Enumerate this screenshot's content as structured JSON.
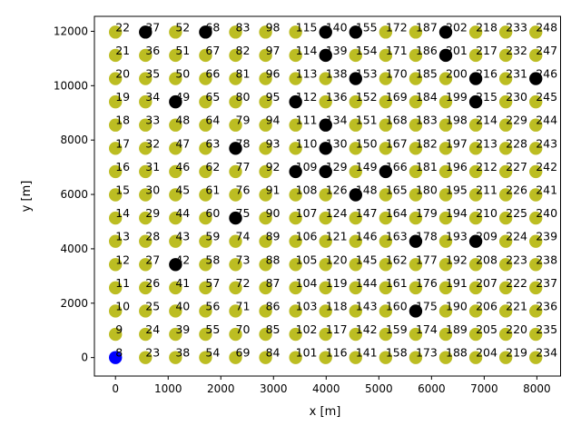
{
  "chart_data": {
    "type": "scatter",
    "xlabel": "x [m]",
    "ylabel": "y [m]",
    "xlim": [
      -400,
      8450
    ],
    "ylim": [
      -680,
      12550
    ],
    "xticks": [
      0,
      1000,
      2000,
      3000,
      4000,
      5000,
      6000,
      7000,
      8000
    ],
    "yticks": [
      0,
      2000,
      4000,
      6000,
      8000,
      10000,
      12000
    ],
    "grid": false,
    "colors": {
      "default": "#bcbd22",
      "highlighted": "#000000",
      "origin": "#0000ff"
    },
    "columns_x": [
      0,
      570,
      1140,
      1710,
      2280,
      2850,
      3420,
      3990,
      4560,
      5130,
      5700,
      6270,
      6840,
      7410,
      7980
    ],
    "rows_y": [
      0,
      855,
      1710,
      2565,
      3420,
      4275,
      5130,
      5985,
      6840,
      7695,
      8550,
      9405,
      10260,
      11115,
      11970
    ],
    "column_first_label": [
      8,
      23,
      38,
      54,
      69,
      84,
      101,
      116,
      141,
      158,
      173,
      188,
      204,
      219,
      234
    ],
    "column_label_overrides": {
      "0": [
        8,
        9,
        10,
        11,
        12,
        13,
        14,
        15,
        16,
        17,
        18,
        19,
        20,
        21,
        22
      ],
      "7": [
        116,
        117,
        118,
        119,
        120,
        121,
        124,
        126,
        129,
        130,
        134,
        136,
        138,
        139,
        140
      ]
    },
    "label_offsets": {
      "1": 8,
      "2": 8,
      "3": 12,
      "4": 14,
      "5": 13,
      "6": 11,
      "7": 10,
      "8": 12
    },
    "highlighted_points": [
      [
        570,
        11970
      ],
      [
        1710,
        11970
      ],
      [
        3990,
        11970
      ],
      [
        4560,
        11970
      ],
      [
        6270,
        11970
      ],
      [
        3990,
        11115
      ],
      [
        6270,
        11115
      ],
      [
        4560,
        10260
      ],
      [
        6840,
        10260
      ],
      [
        7980,
        10260
      ],
      [
        1140,
        9405
      ],
      [
        3420,
        9405
      ],
      [
        6840,
        9405
      ],
      [
        3990,
        8550
      ],
      [
        2280,
        7695
      ],
      [
        3990,
        7695
      ],
      [
        3420,
        6840
      ],
      [
        3990,
        6840
      ],
      [
        5130,
        6840
      ],
      [
        4560,
        5985
      ],
      [
        2280,
        5130
      ],
      [
        5700,
        4275
      ],
      [
        6840,
        4275
      ],
      [
        1140,
        3420
      ],
      [
        5700,
        1710
      ]
    ],
    "origin_point": [
      0,
      0
    ]
  }
}
